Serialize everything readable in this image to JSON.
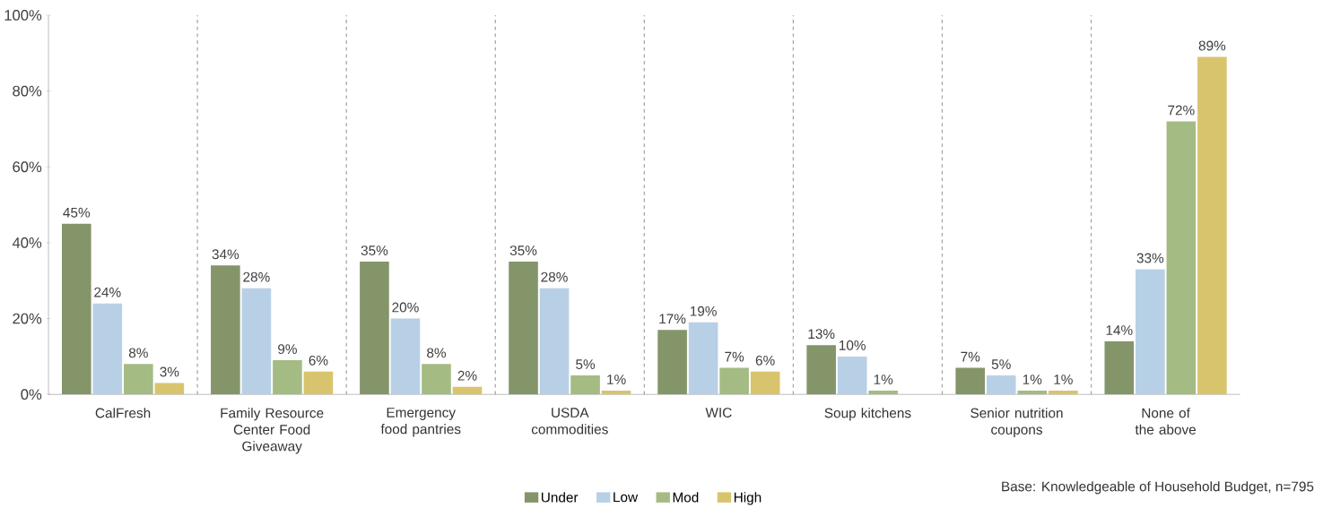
{
  "chart_data": {
    "type": "bar",
    "categories": [
      "CalFresh",
      "Family Resource Center Food Giveaway",
      "Emergency food pantries",
      "USDA commodities",
      "WIC",
      "Soup kitchens",
      "Senior nutrition coupons",
      "None of the above"
    ],
    "series": [
      {
        "name": "Under",
        "color": "#84956a",
        "values": [
          45,
          34,
          35,
          35,
          17,
          13,
          7,
          14
        ],
        "value_labels": [
          "45%",
          "34%",
          "35%",
          "35%",
          "17%",
          "13%",
          "7%",
          "14%"
        ]
      },
      {
        "name": "Low",
        "color": "#b8d0e6",
        "values": [
          24,
          28,
          20,
          28,
          19,
          10,
          5,
          33
        ],
        "value_labels": [
          "24%",
          "28%",
          "20%",
          "28%",
          "19%",
          "10%",
          "5%",
          "33%"
        ]
      },
      {
        "name": "Mod",
        "color": "#a4bb84",
        "values": [
          8,
          9,
          8,
          5,
          7,
          1,
          1,
          72
        ],
        "value_labels": [
          "8%",
          "9%",
          "8%",
          "5%",
          "7%",
          "1%",
          "1%",
          "72%"
        ]
      },
      {
        "name": "High",
        "color": "#d9c46e",
        "values": [
          3,
          6,
          2,
          1,
          6,
          null,
          1,
          89
        ],
        "value_labels": [
          "3%",
          "6%",
          "2%",
          "1%",
          "6%",
          null,
          "1%",
          "89%"
        ]
      }
    ],
    "ylim": [
      0,
      100
    ],
    "yticks": [
      {
        "value": 0,
        "label": "0%"
      },
      {
        "value": 20,
        "label": "20%"
      },
      {
        "value": 40,
        "label": "40%"
      },
      {
        "value": 60,
        "label": "60%"
      },
      {
        "value": 80,
        "label": "80%"
      },
      {
        "value": 100,
        "label": "100%"
      }
    ],
    "grid": "x",
    "legend": "bottom",
    "annotations": [
      "Base: Knowledgeable of Household Budget, n=795"
    ]
  }
}
